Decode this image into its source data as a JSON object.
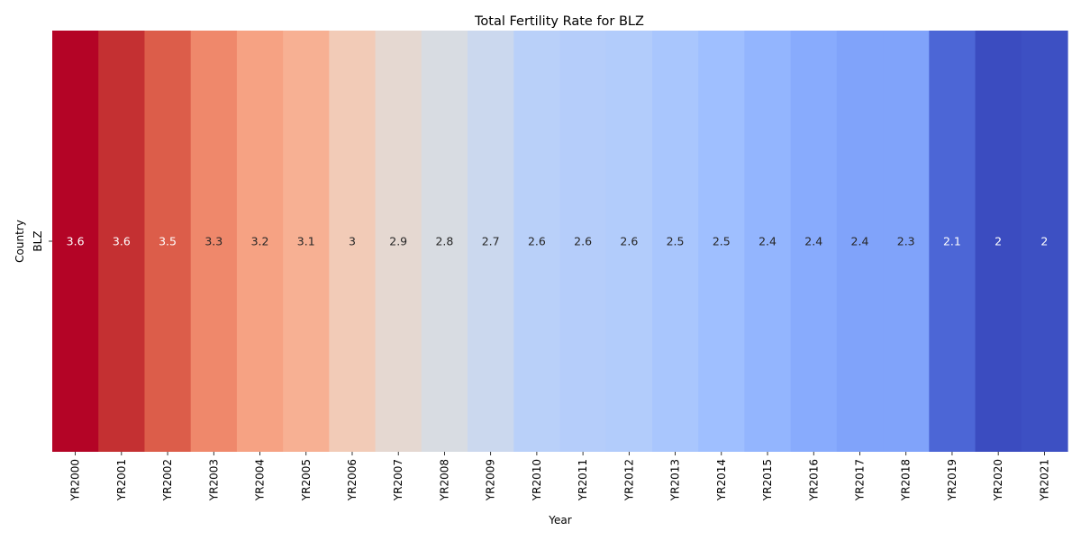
{
  "chart_data": {
    "type": "heatmap",
    "title": "Total Fertility Rate for BLZ",
    "xlabel": "Year",
    "ylabel": "Country",
    "rows": [
      "BLZ"
    ],
    "columns": [
      "YR2000",
      "YR2001",
      "YR2002",
      "YR2003",
      "YR2004",
      "YR2005",
      "YR2006",
      "YR2007",
      "YR2008",
      "YR2009",
      "YR2010",
      "YR2011",
      "YR2012",
      "YR2013",
      "YR2014",
      "YR2015",
      "YR2016",
      "YR2017",
      "YR2018",
      "YR2019",
      "YR2020",
      "YR2021"
    ],
    "values": [
      [
        3.6,
        3.6,
        3.5,
        3.3,
        3.2,
        3.1,
        3.0,
        2.9,
        2.8,
        2.7,
        2.6,
        2.6,
        2.6,
        2.5,
        2.5,
        2.4,
        2.4,
        2.4,
        2.3,
        2.1,
        2.0,
        2.0
      ]
    ],
    "cell_colors": [
      "#b40426",
      "#c43032",
      "#dc5d4a",
      "#ef886b",
      "#f6a283",
      "#f7b093",
      "#f2cbb7",
      "#e5d8d1",
      "#d8dce2",
      "#cbd8ee",
      "#b9d0f9",
      "#b5cdfa",
      "#b2ccfb",
      "#a9c6fd",
      "#9fbfff",
      "#93b5fe",
      "#88abfd",
      "#80a3fa",
      "#80a3fa",
      "#4c66d6",
      "#3b4cc0",
      "#3d50c3"
    ],
    "cell_labels": [
      "3.6",
      "3.6",
      "3.5",
      "3.3",
      "3.2",
      "3.1",
      "3",
      "2.9",
      "2.8",
      "2.7",
      "2.6",
      "2.6",
      "2.6",
      "2.5",
      "2.5",
      "2.4",
      "2.4",
      "2.4",
      "2.3",
      "2.1",
      "2",
      "2"
    ],
    "colormap": "coolwarm",
    "colorbar": false
  }
}
